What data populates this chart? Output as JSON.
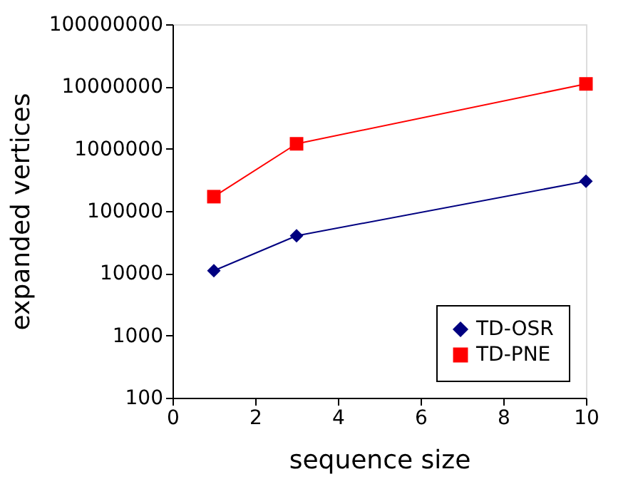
{
  "chart_data": {
    "type": "line",
    "xlabel": "sequence size",
    "ylabel": "expanded vertices",
    "x": [
      1,
      3,
      10
    ],
    "series": [
      {
        "name": "TD-OSR",
        "color": "#000080",
        "marker": "diamond",
        "values": [
          11000,
          40000,
          300000
        ]
      },
      {
        "name": "TD-PNE",
        "color": "#ff0000",
        "marker": "square",
        "values": [
          170000,
          1200000,
          11000000
        ]
      }
    ],
    "log": "y",
    "xlim": [
      0,
      10
    ],
    "xticks": [
      0,
      2,
      4,
      6,
      8,
      10
    ],
    "ylim": [
      100,
      100000000
    ],
    "yticks": [
      100,
      1000,
      10000,
      100000,
      1000000,
      10000000,
      100000000
    ],
    "grid": false,
    "legend": "bottom right",
    "line_style": "solid"
  }
}
